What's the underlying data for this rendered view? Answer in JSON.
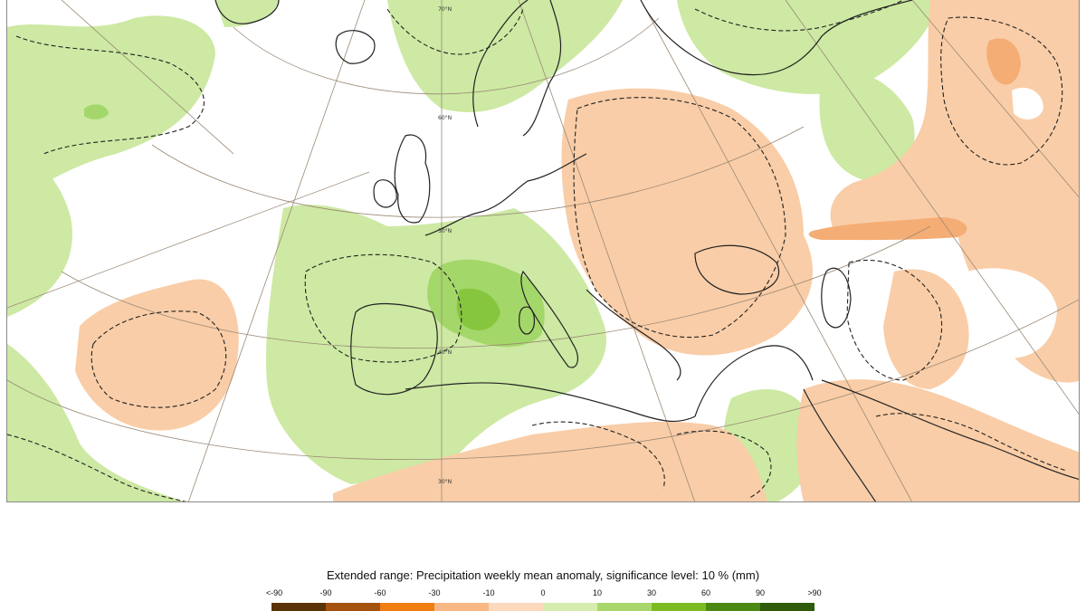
{
  "legend": {
    "title": "Extended range: Precipitation weekly mean anomaly, significance level: 10 % (mm)",
    "ticks": [
      "<-90",
      "-90",
      "-60",
      "-30",
      "-10",
      "0",
      "10",
      "30",
      "60",
      "90",
      ">90"
    ],
    "colors": [
      "#5a3205",
      "#a4520e",
      "#f07f12",
      "#f8b886",
      "#fcd8bc",
      "#d6ecae",
      "#a9d76c",
      "#7cbc22",
      "#4b8a12",
      "#2e5c0a"
    ]
  },
  "map": {
    "lat_labels": [
      "70°N",
      "60°N",
      "50°N",
      "40°N",
      "30°N"
    ],
    "colors": {
      "wet_light": "#cde9a3",
      "wet_mid": "#a4d76a",
      "wet_strong": "#86c63e",
      "dry_light": "#f9cda7",
      "dry_mid": "#f4ad74",
      "grid": "#9b8977",
      "coast": "#222222"
    }
  }
}
